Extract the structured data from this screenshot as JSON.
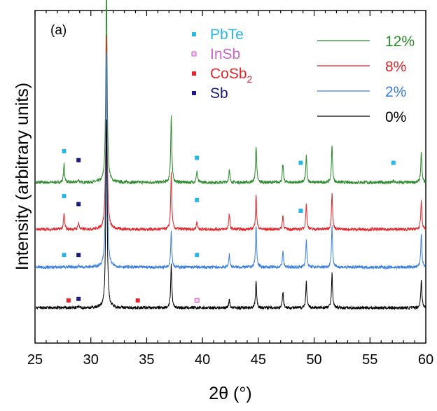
{
  "chart_data": {
    "type": "line",
    "panel_label": "(a)",
    "xlabel": "2θ (°)",
    "ylabel": "Intensity (arbitrary units)",
    "xlim": [
      25,
      60
    ],
    "xticks": [
      25,
      30,
      35,
      40,
      45,
      50,
      55,
      60
    ],
    "ylim": [
      0,
      100
    ],
    "y_tick_labels_shown": false,
    "legend_phases": [
      {
        "label": "PbTe",
        "color": "#29b6e8",
        "marker": "square"
      },
      {
        "label": "InSb",
        "color": "#cc66cc",
        "marker": "open-square",
        "fill": "#f0c8f0"
      },
      {
        "label": "CoSb",
        "subscript": "2",
        "color": "#e3262b",
        "marker": "square"
      },
      {
        "label": "Sb",
        "color": "#1a1a80",
        "marker": "square"
      }
    ],
    "series": [
      {
        "name": "12%",
        "color": "#2a8a2a",
        "baseline": 48.3,
        "peaks": [
          [
            27.6,
            5.5
          ],
          [
            28.9,
            0.8
          ],
          [
            31.4,
            59
          ],
          [
            37.2,
            20
          ],
          [
            39.5,
            3.5
          ],
          [
            42.4,
            3.7
          ],
          [
            44.8,
            11
          ],
          [
            47.2,
            5.4
          ],
          [
            49.3,
            8.0
          ],
          [
            51.6,
            11
          ],
          [
            57.1,
            0.5
          ],
          [
            59.6,
            8.9
          ]
        ],
        "markers": [
          {
            "phase": "PbTe",
            "x": 27.6,
            "y": 57.7
          },
          {
            "phase": "Sb",
            "x": 28.9,
            "y": 55.0
          },
          {
            "phase": "PbTe",
            "x": 39.5,
            "y": 55.7
          },
          {
            "phase": "PbTe",
            "x": 48.8,
            "y": 54.2
          },
          {
            "phase": "PbTe",
            "x": 57.1,
            "y": 54.2
          }
        ]
      },
      {
        "name": "8%",
        "color": "#e3262b",
        "baseline": 34.2,
        "peaks": [
          [
            27.6,
            4.6
          ],
          [
            28.9,
            2.0
          ],
          [
            31.4,
            58
          ],
          [
            37.2,
            17
          ],
          [
            39.5,
            2.4
          ],
          [
            42.4,
            4.6
          ],
          [
            44.8,
            10
          ],
          [
            47.2,
            4.2
          ],
          [
            49.3,
            8.0
          ],
          [
            51.6,
            11
          ],
          [
            59.6,
            8.6
          ]
        ],
        "markers": [
          {
            "phase": "PbTe",
            "x": 27.6,
            "y": 44.2
          },
          {
            "phase": "Sb",
            "x": 28.9,
            "y": 41.8
          },
          {
            "phase": "PbTe",
            "x": 39.5,
            "y": 43.0
          },
          {
            "phase": "PbTe",
            "x": 48.8,
            "y": 39.8
          }
        ]
      },
      {
        "name": "2%",
        "color": "#3a7ee0",
        "baseline": 22.8,
        "peaks": [
          [
            27.6,
            0.3
          ],
          [
            28.9,
            0.6
          ],
          [
            31.4,
            65
          ],
          [
            37.2,
            11
          ],
          [
            42.4,
            4.0
          ],
          [
            44.8,
            12.5
          ],
          [
            47.2,
            4.9
          ],
          [
            49.3,
            8.5
          ],
          [
            51.6,
            12.3
          ],
          [
            59.6,
            10.1
          ]
        ],
        "markers": [
          {
            "phase": "PbTe",
            "x": 27.6,
            "y": 26.5
          },
          {
            "phase": "Sb",
            "x": 28.9,
            "y": 26.5
          },
          {
            "phase": "PbTe",
            "x": 39.5,
            "y": 26.5
          }
        ]
      },
      {
        "name": "0%",
        "color": "#000000",
        "baseline": 10.6,
        "peaks": [
          [
            28.9,
            0.5
          ],
          [
            31.4,
            57
          ],
          [
            37.2,
            13
          ],
          [
            42.4,
            2.5
          ],
          [
            44.8,
            7.8
          ],
          [
            47.2,
            4.9
          ],
          [
            49.3,
            7.8
          ],
          [
            51.6,
            10.3
          ],
          [
            59.6,
            8.6
          ]
        ],
        "markers": [
          {
            "phase": "CoSb2",
            "x": 28.0,
            "y": 12.8
          },
          {
            "phase": "Sb",
            "x": 28.9,
            "y": 13.3
          },
          {
            "phase": "CoSb2",
            "x": 34.2,
            "y": 12.8
          },
          {
            "phase": "InSb",
            "x": 39.5,
            "y": 12.8
          }
        ]
      }
    ]
  }
}
